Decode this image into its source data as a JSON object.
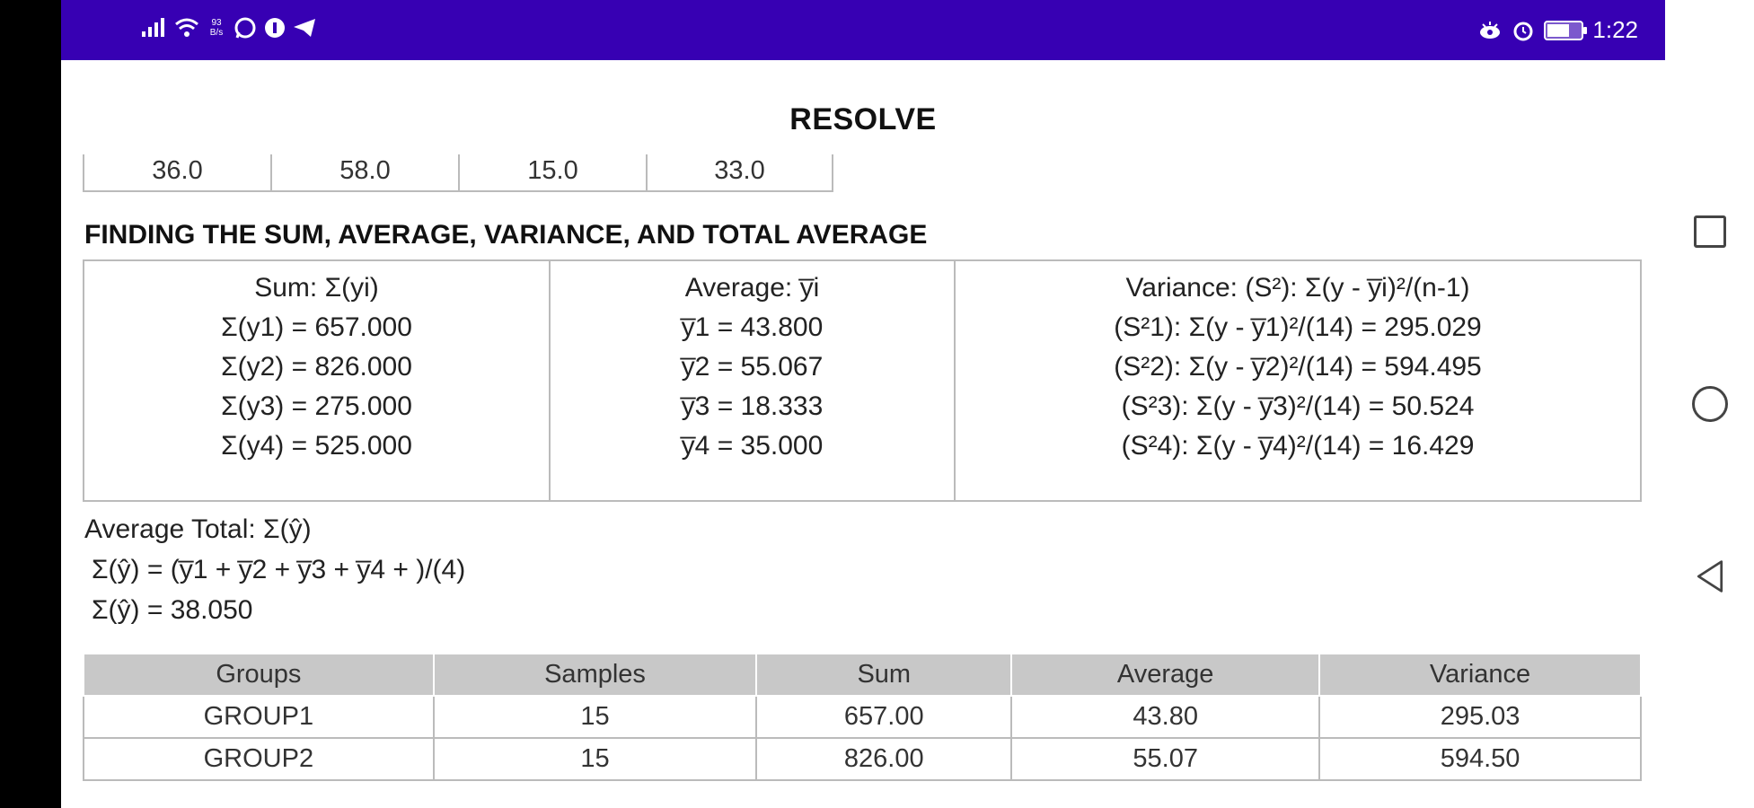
{
  "status_bar": {
    "network_speed_top": "93",
    "network_speed_unit": "B/s",
    "time": "1:22",
    "battery_level": 0.6,
    "left_icons": [
      "signal-icon",
      "wifi-icon",
      "whatsapp-icon",
      "app-icon",
      "telegram-icon"
    ],
    "right_icons": [
      "eye-comfort-icon",
      "alarm-icon",
      "battery-icon"
    ]
  },
  "page": {
    "title": "RESOLVE"
  },
  "top_values": [
    "36.0",
    "58.0",
    "15.0",
    "33.0"
  ],
  "section": {
    "heading": "FINDING THE SUM, AVERAGE, VARIANCE, AND TOTAL AVERAGE"
  },
  "stats": {
    "sum": {
      "header": "Sum: Σ(yi)",
      "lines": [
        "Σ(y1) = 657.000",
        "Σ(y2) = 826.000",
        "Σ(y3) = 275.000",
        "Σ(y4) = 525.000"
      ]
    },
    "average": {
      "header": "Average: y̅i",
      "lines": [
        "y̅1 = 43.800",
        "y̅2 = 55.067",
        "y̅3 = 18.333",
        "y̅4 = 35.000"
      ]
    },
    "variance": {
      "header": "Variance: (S²): Σ(y - y̅i)²/(n-1)",
      "lines": [
        "(S²1): Σ(y - y̅1)²/(14) = 295.029",
        "(S²2): Σ(y - y̅2)²/(14) = 594.495",
        "(S²3): Σ(y - y̅3)²/(14) = 50.524",
        "(S²4): Σ(y - y̅4)²/(14) = 16.429"
      ]
    }
  },
  "average_total": {
    "label": "Average Total: Σ(ŷ)",
    "formula": "Σ(ŷ) = (y̅1 + y̅2 + y̅3 + y̅4 + )/(4)",
    "result": "Σ(ŷ) = 38.050"
  },
  "summary_table": {
    "headers": [
      "Groups",
      "Samples",
      "Sum",
      "Average",
      "Variance"
    ],
    "rows": [
      [
        "GROUP1",
        "15",
        "657.00",
        "43.80",
        "295.03"
      ],
      [
        "GROUP2",
        "15",
        "826.00",
        "55.07",
        "594.50"
      ]
    ]
  },
  "colors": {
    "status_bar": "#3700b3",
    "table_header": "#c8c8c8",
    "border": "#bbbbbb"
  }
}
